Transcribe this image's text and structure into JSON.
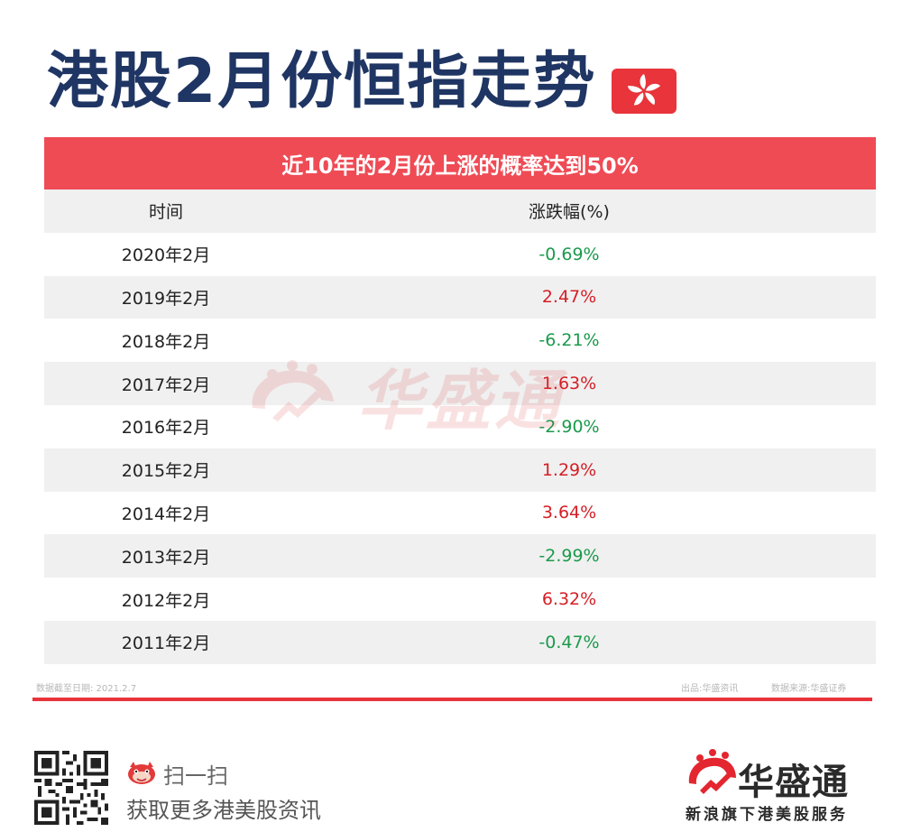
{
  "title": "港股2月份恒指走势",
  "banner": "近10年的2月份上涨的概率达到50%",
  "table": {
    "headers": {
      "time": "时间",
      "change": "涨跌幅(%)"
    },
    "rows": [
      {
        "time": "2020年2月",
        "change": "-0.69%",
        "direction": "down"
      },
      {
        "time": "2019年2月",
        "change": "2.47%",
        "direction": "up"
      },
      {
        "time": "2018年2月",
        "change": "-6.21%",
        "direction": "down"
      },
      {
        "time": "2017年2月",
        "change": "1.63%",
        "direction": "up"
      },
      {
        "time": "2016年2月",
        "change": "-2.90%",
        "direction": "down"
      },
      {
        "time": "2015年2月",
        "change": "1.29%",
        "direction": "up"
      },
      {
        "time": "2014年2月",
        "change": "3.64%",
        "direction": "up"
      },
      {
        "time": "2013年2月",
        "change": "-2.99%",
        "direction": "down"
      },
      {
        "time": "2012年2月",
        "change": "6.32%",
        "direction": "up"
      },
      {
        "time": "2011年2月",
        "change": "-0.47%",
        "direction": "down"
      }
    ]
  },
  "watermark": "华盛通",
  "footnotes": {
    "cutoff": "数据截至日期:   2021.2.7",
    "producer": "出品:华盛资讯",
    "source": "数据来源:华盛证券"
  },
  "footer": {
    "scan_label": "扫一扫",
    "scan_sub": "获取更多港美股资讯",
    "brand_name": "华盛通",
    "brand_slogan": "新浪旗下港美股服务"
  },
  "colors": {
    "title": "#1f3563",
    "banner": "#ef4b55",
    "up": "#d51f26",
    "down": "#1b9a4c",
    "row_shade": "#f0f0f0",
    "rule": "#e8343a"
  },
  "icons": {
    "flag": "hong-kong-flag-icon",
    "qr": "qr-code-icon",
    "scan": "mascot-icon",
    "brand": "huasheng-logo-icon"
  }
}
